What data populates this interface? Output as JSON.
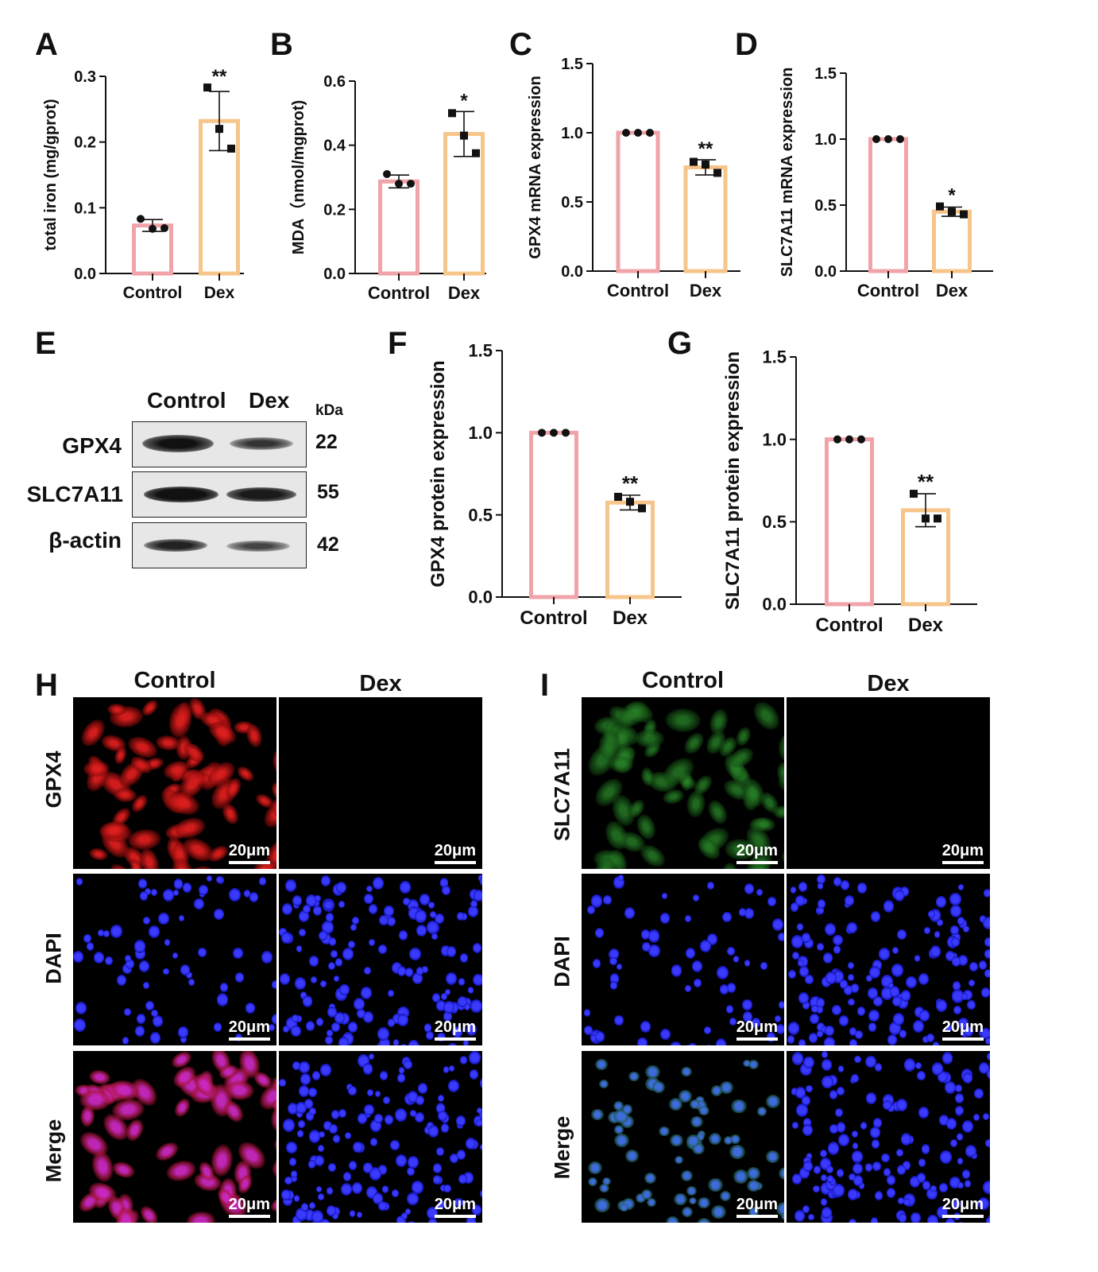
{
  "panels": {
    "A": "A",
    "B": "B",
    "C": "C",
    "D": "D",
    "E": "E",
    "F": "F",
    "G": "G",
    "H": "H",
    "I": "I"
  },
  "colors": {
    "control": "#f0a3a8",
    "dex": "#f7c58a",
    "axis": "#111111"
  },
  "chart_data": [
    {
      "id": "A",
      "type": "bar",
      "categories": [
        "Control",
        "Dex"
      ],
      "values": [
        0.073,
        0.232
      ],
      "errors": [
        0.009,
        0.045
      ],
      "points": [
        [
          0.083,
          0.068,
          0.069
        ],
        [
          0.283,
          0.22,
          0.19
        ]
      ],
      "significance": [
        "",
        "**"
      ],
      "ylabel": "total iron (mg/gprot)",
      "ylim": [
        0,
        0.3
      ],
      "yticks": [
        "0.0",
        "0.1",
        "0.2",
        "0.3"
      ]
    },
    {
      "id": "B",
      "type": "bar",
      "categories": [
        "Control",
        "Dex"
      ],
      "values": [
        0.287,
        0.435
      ],
      "errors": [
        0.02,
        0.07
      ],
      "points": [
        [
          0.31,
          0.28,
          0.28
        ],
        [
          0.5,
          0.43,
          0.375
        ]
      ],
      "significance": [
        "",
        "*"
      ],
      "ylabel": "MDA（nmol/mgprot)",
      "ylim": [
        0,
        0.6
      ],
      "yticks": [
        "0.0",
        "0.2",
        "0.4",
        "0.6"
      ]
    },
    {
      "id": "C",
      "type": "bar",
      "categories": [
        "Control",
        "Dex"
      ],
      "values": [
        1.0,
        0.75
      ],
      "errors": [
        0.0,
        0.055
      ],
      "points": [
        [
          1.0,
          1.0,
          1.0
        ],
        [
          0.79,
          0.77,
          0.71
        ]
      ],
      "significance": [
        "",
        "**"
      ],
      "ylabel": "GPX4 mRNA expression",
      "ylim": [
        0,
        1.5
      ],
      "yticks": [
        "0.0",
        "0.5",
        "1.0",
        "1.5"
      ]
    },
    {
      "id": "D",
      "type": "bar",
      "categories": [
        "Control",
        "Dex"
      ],
      "values": [
        1.0,
        0.45
      ],
      "errors": [
        0.0,
        0.035
      ],
      "points": [
        [
          1.0,
          1.0,
          1.0
        ],
        [
          0.49,
          0.45,
          0.43
        ]
      ],
      "significance": [
        "",
        "*"
      ],
      "ylabel": "SLC7A11 mRNA expression",
      "ylim": [
        0,
        1.5
      ],
      "yticks": [
        "0.0",
        "0.5",
        "1.0",
        "1.5"
      ]
    },
    {
      "id": "F",
      "type": "bar",
      "categories": [
        "Control",
        "Dex"
      ],
      "values": [
        1.0,
        0.575
      ],
      "errors": [
        0.0,
        0.045
      ],
      "points": [
        [
          1.0,
          1.0,
          1.0
        ],
        [
          0.61,
          0.58,
          0.54
        ]
      ],
      "significance": [
        "",
        "**"
      ],
      "ylabel": "GPX4 protein expression",
      "ylim": [
        0,
        1.5
      ],
      "yticks": [
        "0.0",
        "0.5",
        "1.0",
        "1.5"
      ]
    },
    {
      "id": "G",
      "type": "bar",
      "categories": [
        "Control",
        "Dex"
      ],
      "values": [
        1.0,
        0.57
      ],
      "errors": [
        0.0,
        0.1
      ],
      "points": [
        [
          1.0,
          1.0,
          1.0
        ],
        [
          0.67,
          0.52,
          0.52
        ]
      ],
      "significance": [
        "",
        "**"
      ],
      "ylabel": "SLC7A11 protein expression",
      "ylim": [
        0,
        1.5
      ],
      "yticks": [
        "0.0",
        "0.5",
        "1.0",
        "1.5"
      ]
    }
  ],
  "western_blot": {
    "headers": [
      "Control",
      "Dex"
    ],
    "kda_label": "kDa",
    "rows": [
      {
        "protein": "GPX4",
        "kda": "22"
      },
      {
        "protein": "SLC7A11",
        "kda": "55"
      },
      {
        "protein": "β-actin",
        "kda": "42"
      }
    ]
  },
  "if_H": {
    "columns": [
      "Control",
      "Dex"
    ],
    "rows": [
      "GPX4",
      "DAPI",
      "Merge"
    ],
    "scale": "20μm"
  },
  "if_I": {
    "columns": [
      "Control",
      "Dex"
    ],
    "rows": [
      "SLC7A11",
      "DAPI",
      "Merge"
    ],
    "scale": "20μm"
  }
}
